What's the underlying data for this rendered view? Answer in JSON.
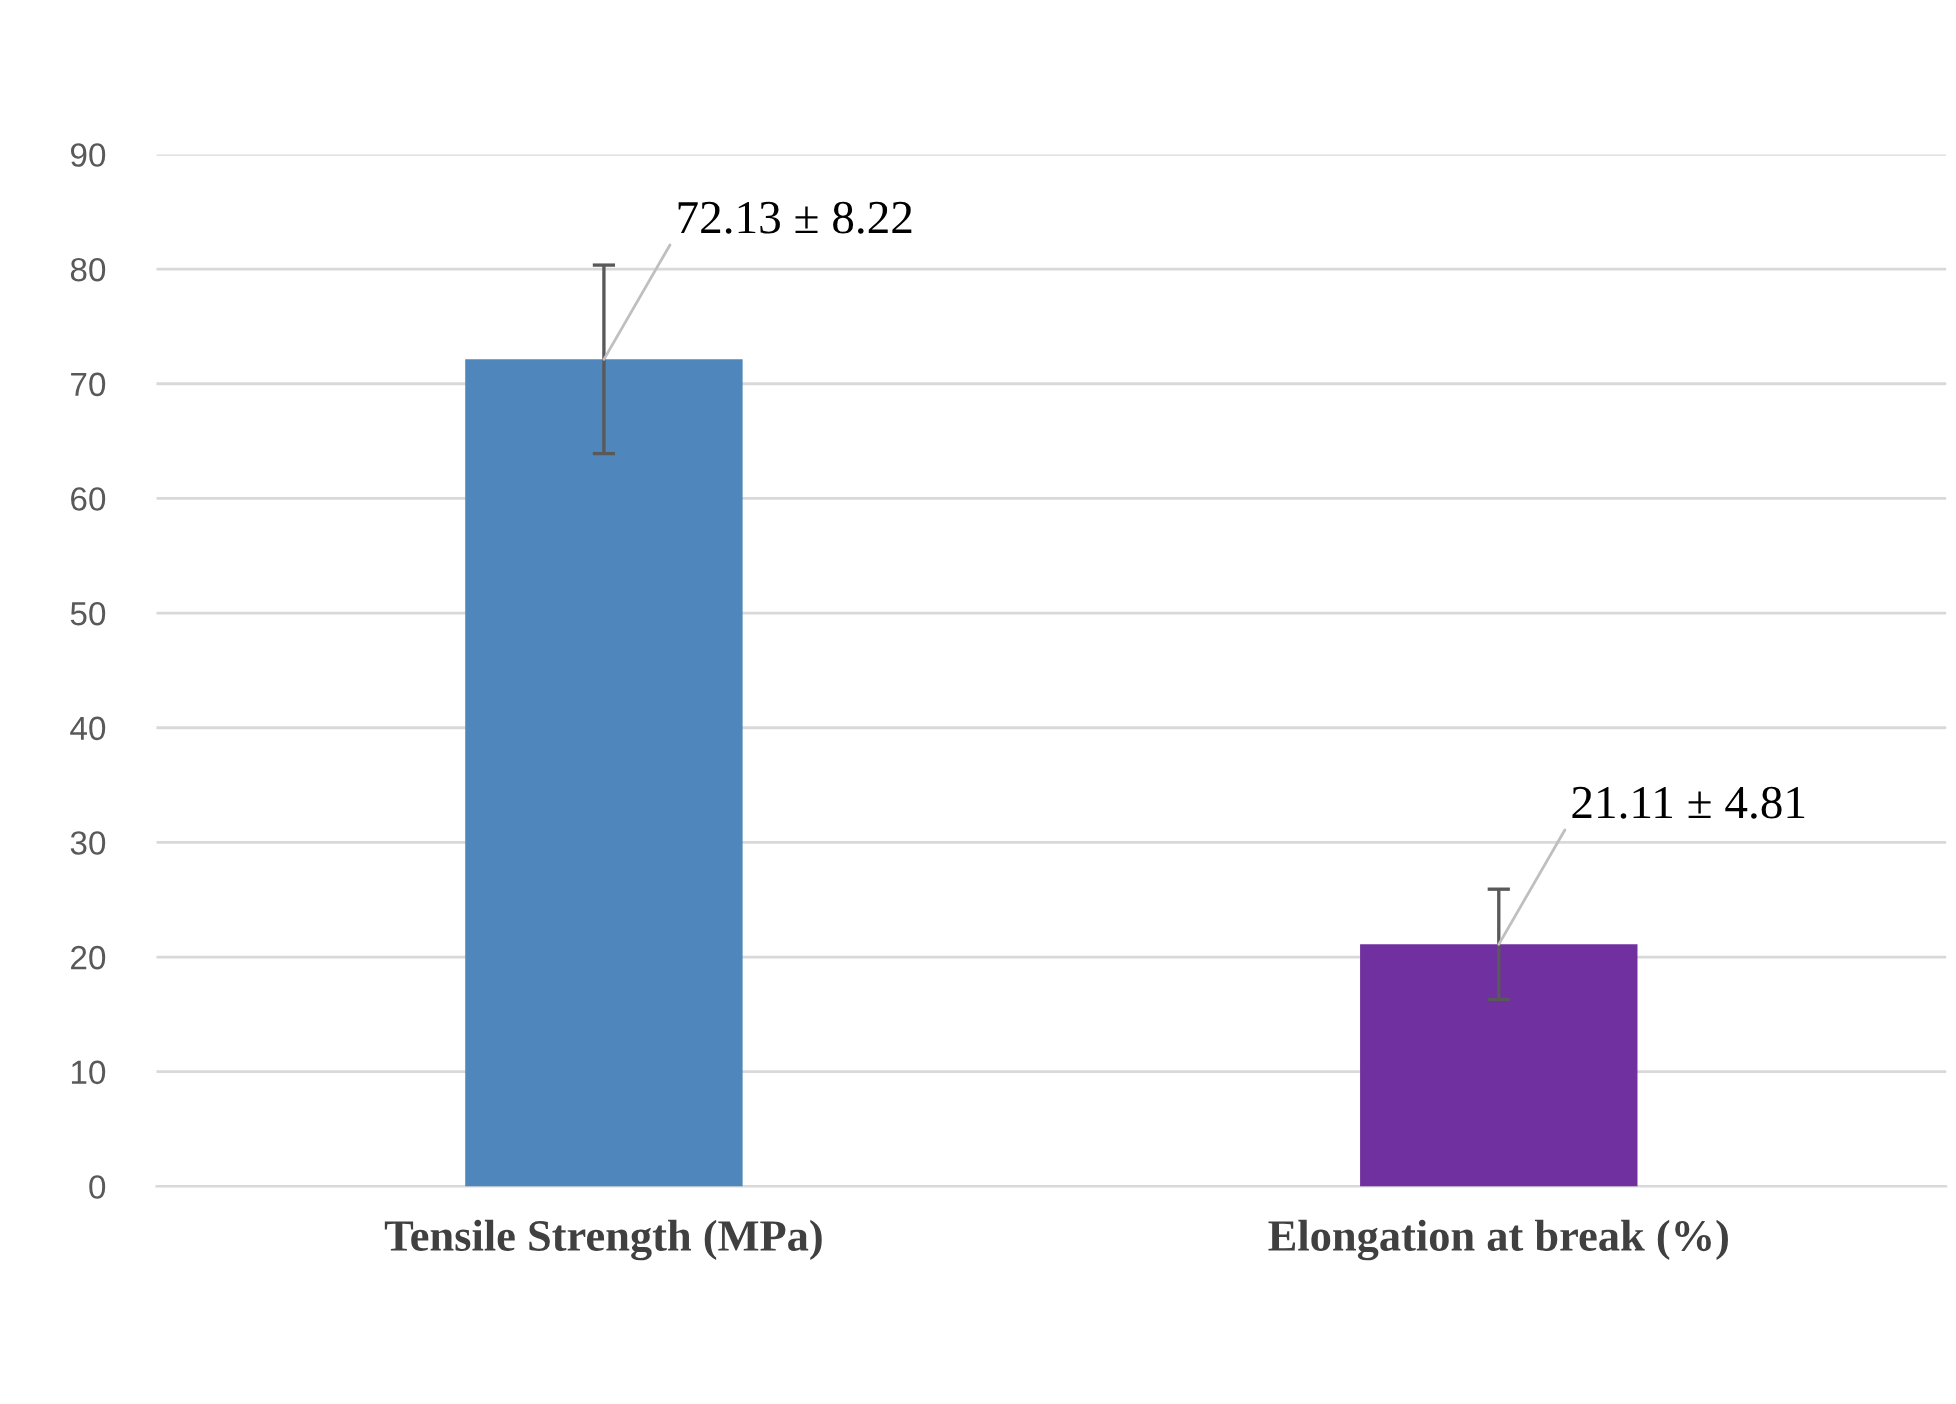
{
  "chart_data": {
    "type": "bar",
    "categories": [
      "Tensile Strength (MPa)",
      "Elongation at break (%)"
    ],
    "values": [
      72.13,
      21.11
    ],
    "colors": [
      "#4f87bd",
      "#7030a0"
    ],
    "errors": [
      8.22,
      4.81
    ],
    "value_labels": [
      "72.13 ± 8.22",
      "21.11 ± 4.81"
    ],
    "ylim": [
      0,
      90
    ],
    "yticks": [
      0,
      10,
      20,
      30,
      40,
      50,
      60,
      70,
      80,
      90
    ],
    "grid": "y",
    "legend": false
  }
}
